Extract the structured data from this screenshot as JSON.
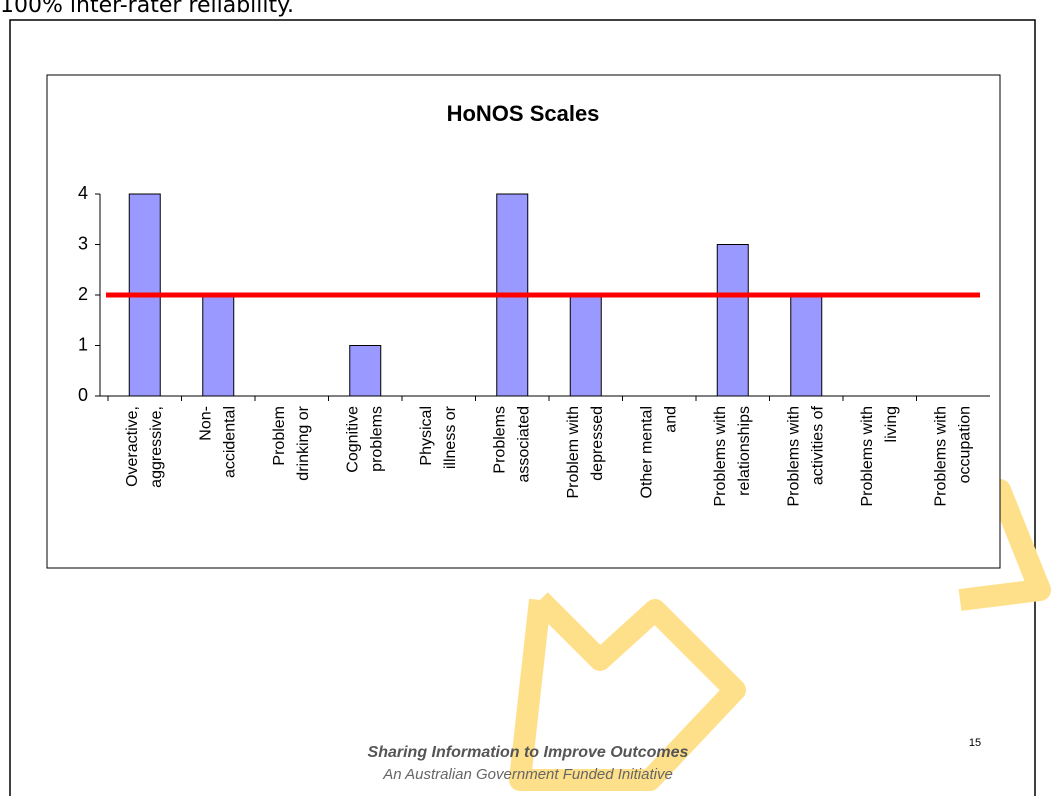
{
  "slide": {
    "heading": "100% inter-rater reliability.",
    "footer_line1": "Sharing Information to Improve Outcomes",
    "footer_line2": "An Australian Government Funded Initiative",
    "page_number": "15"
  },
  "chart_data": {
    "type": "bar",
    "title": "HoNOS Scales",
    "categories": [
      "Overactive, aggressive,",
      "Non- accidental",
      "Problem drinking or",
      "Cognitive problems",
      "Physical illness or",
      "Problems associated",
      "Problem with depressed",
      "Other mental and",
      "Problems with relationships",
      "Problems with activities of",
      "Problems with living",
      "Problems with occupation"
    ],
    "values": [
      4,
      2,
      0,
      1,
      0,
      4,
      2,
      0,
      3,
      2,
      0,
      0
    ],
    "color": "#9999ff",
    "ylim": [
      0,
      4
    ],
    "yticks": [
      0,
      1,
      2,
      3,
      4
    ],
    "reference_line": {
      "value": 2,
      "color": "#ff0000"
    }
  }
}
